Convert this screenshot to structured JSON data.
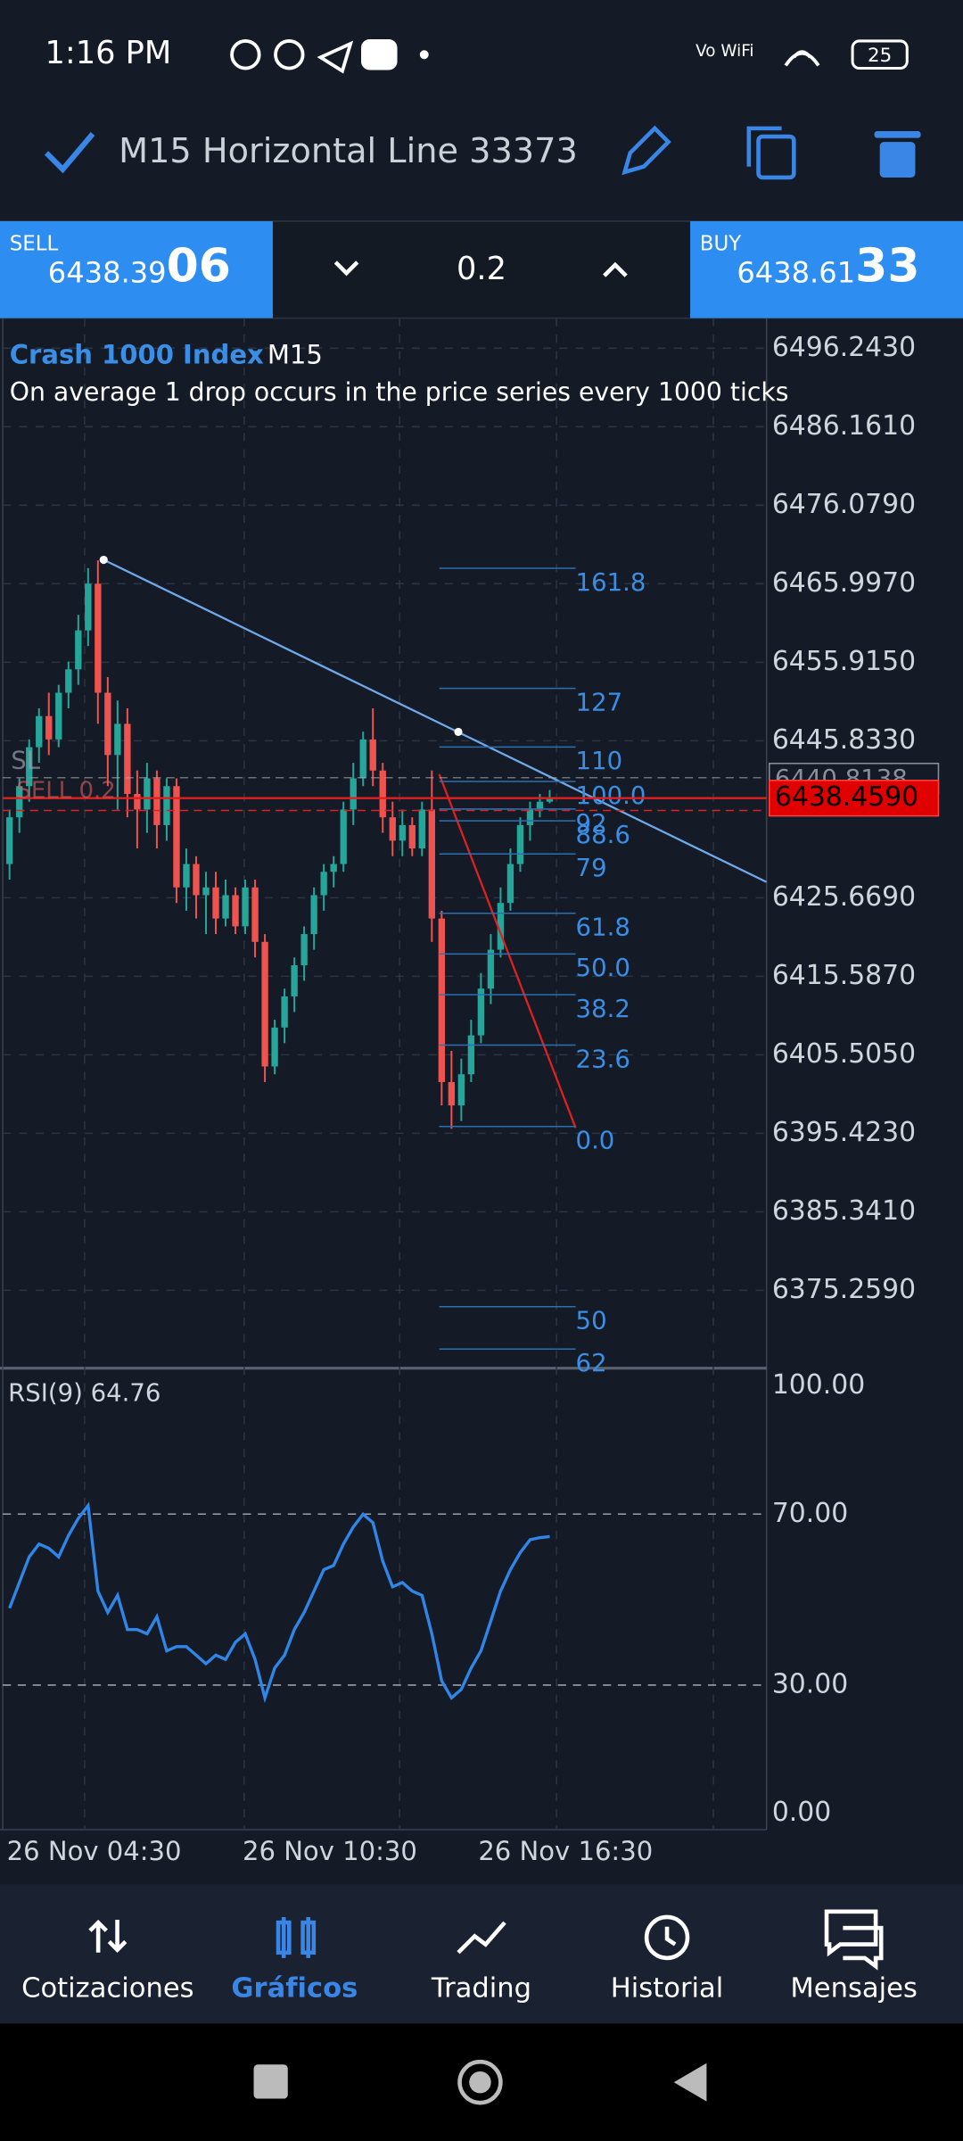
{
  "status_bar": {
    "time": "1:16 PM",
    "network": "Vo WiFi",
    "battery": "25"
  },
  "toolbar": {
    "title": "M15 Horizontal Line 33373"
  },
  "trade_panel": {
    "sell": {
      "label": "SELL",
      "price": "6438.39",
      "price_big": "06"
    },
    "volume": "0.2",
    "buy": {
      "label": "BUY",
      "price": "6438.61",
      "price_big": "33"
    }
  },
  "chart": {
    "type": "candlestick",
    "symbol": "Crash 1000 Index",
    "timeframe": "M15",
    "description": "On average 1 drop occurs in the price series every 1000 ticks",
    "colors": {
      "up": "#26a69a",
      "down": "#ef5350"
    },
    "ylim": [
      6365.61,
      6500.1
    ],
    "yticks": [
      {
        "value": 6496.243,
        "label": "6496.2430"
      },
      {
        "value": 6486.161,
        "label": "6486.1610"
      },
      {
        "value": 6476.079,
        "label": "6476.0790"
      },
      {
        "value": 6465.997,
        "label": "6465.9970"
      },
      {
        "value": 6455.915,
        "label": "6455.9150"
      },
      {
        "value": 6445.833,
        "label": "6445.8330"
      },
      {
        "value": 6425.669,
        "label": "6425.6690"
      },
      {
        "value": 6415.587,
        "label": "6415.5870"
      },
      {
        "value": 6405.505,
        "label": "6405.5050"
      },
      {
        "value": 6395.423,
        "label": "6395.4230"
      },
      {
        "value": 6385.341,
        "label": "6385.3410"
      },
      {
        "value": 6375.259,
        "label": "6375.2590"
      }
    ],
    "x_labels": [
      "26 Nov 04:30",
      "26 Nov 10:30",
      "26 Nov 16:30"
    ],
    "candles": [
      [
        6430,
        6437,
        6428,
        6436
      ],
      [
        6436,
        6441,
        6434,
        6440
      ],
      [
        6440,
        6446,
        6438,
        6445
      ],
      [
        6445,
        6450,
        6443,
        6449
      ],
      [
        6449,
        6452,
        6444,
        6446
      ],
      [
        6446,
        6453,
        6445,
        6452
      ],
      [
        6452,
        6456,
        6450,
        6455
      ],
      [
        6455,
        6462,
        6453,
        6460
      ],
      [
        6460,
        6468,
        6458,
        6466
      ],
      [
        6466,
        6469,
        6448,
        6452
      ],
      [
        6452,
        6454,
        6440,
        6444
      ],
      [
        6444,
        6451,
        6437,
        6448
      ],
      [
        6448,
        6450,
        6436,
        6439
      ],
      [
        6439,
        6442,
        6432,
        6437
      ],
      [
        6437,
        6443,
        6434,
        6441
      ],
      [
        6441,
        6442,
        6432,
        6435
      ],
      [
        6435,
        6441,
        6433,
        6440
      ],
      [
        6440,
        6441,
        6425,
        6427
      ],
      [
        6427,
        6432,
        6424,
        6430
      ],
      [
        6430,
        6431,
        6423,
        6426
      ],
      [
        6426,
        6429,
        6421,
        6427
      ],
      [
        6427,
        6429,
        6421,
        6423
      ],
      [
        6423,
        6428,
        6422,
        6426
      ],
      [
        6426,
        6427,
        6421,
        6422
      ],
      [
        6422,
        6428,
        6421,
        6427
      ],
      [
        6427,
        6428,
        6418,
        6420
      ],
      [
        6420,
        6421,
        6402,
        6404
      ],
      [
        6404,
        6410,
        6403,
        6409
      ],
      [
        6409,
        6414,
        6407,
        6413
      ],
      [
        6413,
        6418,
        6411,
        6417
      ],
      [
        6417,
        6422,
        6415,
        6421
      ],
      [
        6421,
        6427,
        6419,
        6426
      ],
      [
        6426,
        6430,
        6424,
        6429
      ],
      [
        6429,
        6431,
        6427,
        6430
      ],
      [
        6430,
        6438,
        6429,
        6437
      ],
      [
        6437,
        6443,
        6435,
        6441
      ],
      [
        6441,
        6447,
        6440,
        6446
      ],
      [
        6446,
        6450,
        6440,
        6442
      ],
      [
        6442,
        6443,
        6434,
        6436
      ],
      [
        6436,
        6438,
        6431,
        6433
      ],
      [
        6433,
        6437,
        6431,
        6435
      ],
      [
        6435,
        6436,
        6431,
        6432
      ],
      [
        6432,
        6438,
        6431,
        6437
      ],
      [
        6437,
        6442,
        6420,
        6423
      ],
      [
        6423,
        6424,
        6399,
        6402
      ],
      [
        6402,
        6406,
        6396,
        6399
      ],
      [
        6399,
        6405,
        6397,
        6403
      ],
      [
        6403,
        6410,
        6402,
        6408
      ],
      [
        6408,
        6416,
        6407,
        6414
      ],
      [
        6414,
        6421,
        6412,
        6419
      ],
      [
        6419,
        6427,
        6418,
        6425
      ],
      [
        6425,
        6432,
        6424,
        6430
      ],
      [
        6430,
        6436,
        6429,
        6435
      ],
      [
        6435,
        6438,
        6433,
        6437
      ],
      [
        6437,
        6439,
        6436,
        6438
      ],
      [
        6438,
        6439.5,
        6437.8,
        6438.5
      ]
    ],
    "fibonacci": {
      "high": 6440.6,
      "low": 6396.3,
      "levels": [
        161.8,
        127,
        110,
        {
          "value": 100,
          "label": "100.0"
        },
        92,
        88.6,
        79,
        61.8,
        {
          "value": 50,
          "label": "50.0"
        },
        38.2,
        23.6,
        {
          "value": 0,
          "label": "0.0"
        }
      ]
    },
    "extension_labels": [
      "50",
      "62"
    ],
    "price_line": {
      "value": 6438.459,
      "label": "6438.4590"
    },
    "level_box": {
      "value": 6440.8138,
      "label": "6440.8138"
    },
    "order_labels": {
      "sl": "SL",
      "sell": "SELL 0.2"
    }
  },
  "rsi": {
    "label": "RSI(9) 64.76",
    "color": "#2f86e8",
    "ylim": [
      0,
      100
    ],
    "yticks": [
      {
        "value": 100,
        "label": "100.00"
      },
      {
        "value": 70,
        "label": "70.00"
      },
      {
        "value": 30,
        "label": "30.00"
      },
      {
        "value": 0,
        "label": "0.00"
      }
    ],
    "values": [
      48,
      54,
      60,
      63,
      62,
      60,
      65,
      69,
      72,
      52,
      47,
      51,
      43,
      43,
      42,
      46,
      38,
      39,
      39,
      37,
      35,
      37,
      36,
      40,
      42,
      36,
      27,
      34,
      37,
      43,
      47,
      52,
      57,
      58,
      63,
      67,
      70,
      68,
      59,
      53,
      54,
      52,
      51,
      42,
      31,
      27,
      29,
      34,
      38,
      45,
      52,
      57,
      61,
      64,
      64.5,
      64.76
    ]
  },
  "nav": {
    "items": [
      "Cotizaciones",
      "Gráficos",
      "Trading",
      "Historial",
      "Mensajes"
    ],
    "active": 1
  }
}
